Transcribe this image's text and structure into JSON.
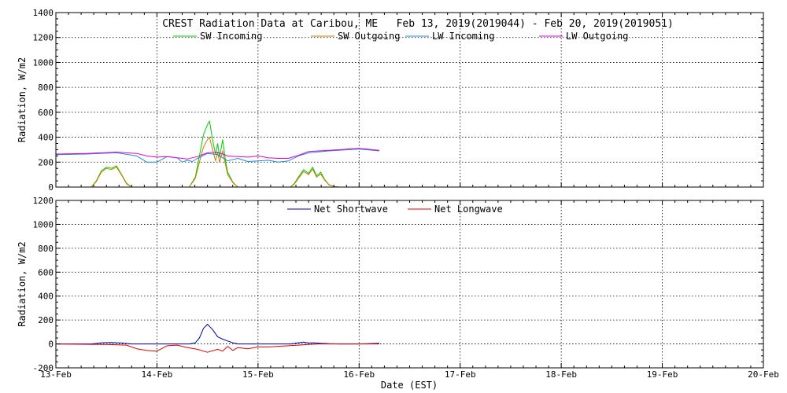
{
  "chart_data": [
    {
      "type": "line",
      "title": "CREST Radiation Data at Caribou, ME   Feb 13, 2019(2019044) - Feb 20, 2019(2019051)",
      "xlabel": "",
      "ylabel": "Radiation, W/m2",
      "xlim": [
        0,
        7
      ],
      "ylim": [
        0,
        1400
      ],
      "yticks": [
        0,
        200,
        400,
        600,
        800,
        1000,
        1200,
        1400
      ],
      "grid": true,
      "legend_placement": "top",
      "series": [
        {
          "name": "SW Incoming",
          "color": "#00cc00",
          "x": [
            0.35,
            0.4,
            0.45,
            0.5,
            0.55,
            0.6,
            0.65,
            0.7,
            0.75,
            1.32,
            1.38,
            1.42,
            1.46,
            1.5,
            1.52,
            1.55,
            1.58,
            1.6,
            1.62,
            1.65,
            1.68,
            1.7,
            1.75,
            1.8,
            2.32,
            2.36,
            2.4,
            2.45,
            2.5,
            2.54,
            2.58,
            2.62,
            2.66,
            2.7,
            2.75,
            2.8
          ],
          "y": [
            0,
            50,
            130,
            160,
            150,
            170,
            100,
            30,
            0,
            0,
            80,
            250,
            420,
            500,
            530,
            380,
            260,
            350,
            240,
            380,
            200,
            120,
            40,
            0,
            0,
            30,
            80,
            140,
            110,
            160,
            90,
            120,
            60,
            20,
            5,
            0
          ]
        },
        {
          "name": "SW Outgoing",
          "color": "#cc7a00",
          "x": [
            0.35,
            0.4,
            0.45,
            0.5,
            0.55,
            0.6,
            0.65,
            0.7,
            0.75,
            1.32,
            1.38,
            1.42,
            1.46,
            1.5,
            1.52,
            1.55,
            1.58,
            1.6,
            1.62,
            1.65,
            1.68,
            1.7,
            1.75,
            1.8,
            2.32,
            2.36,
            2.4,
            2.45,
            2.5,
            2.54,
            2.58,
            2.62,
            2.66,
            2.7,
            2.75,
            2.8
          ],
          "y": [
            0,
            45,
            120,
            150,
            140,
            160,
            95,
            25,
            0,
            0,
            70,
            200,
            320,
            380,
            400,
            300,
            210,
            280,
            200,
            290,
            170,
            100,
            35,
            0,
            0,
            25,
            70,
            125,
            100,
            145,
            80,
            105,
            55,
            18,
            5,
            0
          ]
        },
        {
          "name": "LW Incoming",
          "color": "#1e90c8",
          "x": [
            0.0,
            0.3,
            0.6,
            0.8,
            0.9,
            1.0,
            1.1,
            1.2,
            1.25,
            1.3,
            1.35,
            1.4,
            1.5,
            1.6,
            1.7,
            1.8,
            1.9,
            2.0,
            2.1,
            2.2,
            2.3,
            2.4,
            2.5,
            2.7,
            3.0,
            3.2
          ],
          "y": [
            260,
            265,
            275,
            250,
            200,
            200,
            245,
            235,
            200,
            215,
            205,
            230,
            270,
            260,
            210,
            230,
            205,
            210,
            215,
            200,
            210,
            250,
            275,
            290,
            305,
            290
          ]
        },
        {
          "name": "LW Outgoing",
          "color": "#e000e0",
          "x": [
            0.0,
            0.3,
            0.6,
            0.8,
            0.9,
            1.0,
            1.1,
            1.2,
            1.3,
            1.4,
            1.5,
            1.6,
            1.7,
            1.8,
            1.9,
            2.0,
            2.1,
            2.2,
            2.3,
            2.4,
            2.5,
            2.7,
            3.0,
            3.2
          ],
          "y": [
            265,
            270,
            280,
            270,
            250,
            240,
            245,
            235,
            225,
            245,
            275,
            280,
            250,
            245,
            240,
            250,
            235,
            230,
            230,
            255,
            285,
            295,
            310,
            295
          ]
        }
      ]
    },
    {
      "type": "line",
      "title": "",
      "xlabel": "Date (EST)",
      "ylabel": "Radiation, W/m2",
      "xlim": [
        0,
        7
      ],
      "ylim": [
        -200,
        1200
      ],
      "yticks": [
        -200,
        0,
        200,
        400,
        600,
        800,
        1000,
        1200
      ],
      "xtick_labels": [
        "13-Feb",
        "14-Feb",
        "15-Feb",
        "16-Feb",
        "17-Feb",
        "18-Feb",
        "19-Feb",
        "20-Feb"
      ],
      "grid": true,
      "legend_placement": "top",
      "series": [
        {
          "name": "Net Shortwave",
          "color": "#0000aa",
          "x": [
            0.0,
            0.35,
            0.45,
            0.55,
            0.65,
            0.75,
            1.32,
            1.38,
            1.42,
            1.46,
            1.5,
            1.55,
            1.6,
            1.65,
            1.7,
            1.75,
            1.8,
            2.32,
            2.4,
            2.45,
            2.5,
            2.55,
            2.62,
            2.7,
            2.8,
            3.0,
            3.2
          ],
          "y": [
            0,
            0,
            10,
            12,
            8,
            0,
            0,
            10,
            50,
            130,
            165,
            120,
            60,
            40,
            25,
            10,
            0,
            0,
            10,
            15,
            8,
            10,
            5,
            2,
            0,
            0,
            5
          ]
        },
        {
          "name": "Net Longwave",
          "color": "#dd0000",
          "x": [
            0.0,
            0.5,
            0.7,
            0.8,
            0.9,
            1.0,
            1.1,
            1.2,
            1.3,
            1.4,
            1.5,
            1.6,
            1.65,
            1.7,
            1.75,
            1.8,
            1.9,
            2.0,
            2.1,
            2.2,
            2.3,
            2.4,
            2.5,
            2.6,
            2.8,
            3.0,
            3.2
          ],
          "y": [
            0,
            -5,
            -10,
            -40,
            -55,
            -60,
            -15,
            -10,
            -30,
            -45,
            -70,
            -45,
            -60,
            -20,
            -55,
            -30,
            -40,
            -25,
            -25,
            -20,
            -15,
            -10,
            -5,
            0,
            0,
            0,
            0
          ]
        }
      ]
    }
  ]
}
